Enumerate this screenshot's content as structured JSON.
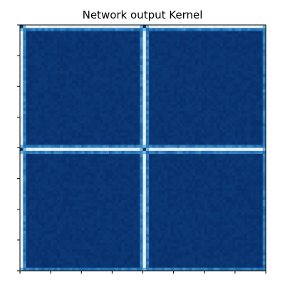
{
  "chart_data": {
    "type": "heatmap",
    "title": "Network output Kernel",
    "xlabel": "",
    "ylabel": "",
    "colormap": "Blues",
    "matrix_size": 80,
    "block_boundaries": [
      0,
      40
    ],
    "colorbar": false,
    "grid": false,
    "x_ticks": {
      "count": 9,
      "labels": []
    },
    "y_ticks": {
      "count": 9,
      "labels": []
    },
    "structure": {
      "interior_level": 1.0,
      "interior_variation": 0.04,
      "near_boundary_level": 0.8,
      "boundary_row_level": 0.04,
      "block_corner_level": 1.0
    },
    "colors": {
      "low": "#f7fbff",
      "mid_low": "#c6dbef",
      "mid": "#6baed6",
      "mid_high": "#2171b5",
      "high": "#08306b",
      "axis": "#000000",
      "background": "#ffffff"
    }
  }
}
